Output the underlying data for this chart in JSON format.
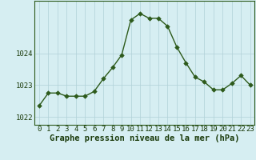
{
  "x": [
    0,
    1,
    2,
    3,
    4,
    5,
    6,
    7,
    8,
    9,
    10,
    11,
    12,
    13,
    14,
    15,
    16,
    17,
    18,
    19,
    20,
    21,
    22,
    23
  ],
  "y": [
    1022.35,
    1022.75,
    1022.75,
    1022.65,
    1022.65,
    1022.65,
    1022.8,
    1023.2,
    1023.55,
    1023.95,
    1025.05,
    1025.25,
    1025.1,
    1025.1,
    1024.85,
    1024.2,
    1023.7,
    1023.25,
    1023.1,
    1022.85,
    1022.85,
    1023.05,
    1023.3,
    1023.0
  ],
  "line_color": "#2d5a1b",
  "marker_color": "#2d5a1b",
  "bg_color": "#d6eef2",
  "plot_bg_color": "#d6eef2",
  "grid_color": "#b0d0d8",
  "title": "Graphe pression niveau de la mer (hPa)",
  "ylim_min": 1021.75,
  "ylim_max": 1025.65,
  "yticks": [
    1022,
    1023,
    1024
  ],
  "xticks": [
    0,
    1,
    2,
    3,
    4,
    5,
    6,
    7,
    8,
    9,
    10,
    11,
    12,
    13,
    14,
    15,
    16,
    17,
    18,
    19,
    20,
    21,
    22,
    23
  ],
  "tick_fontsize": 6.5,
  "title_fontsize": 7.5,
  "marker_size": 2.8,
  "line_width": 1.0
}
